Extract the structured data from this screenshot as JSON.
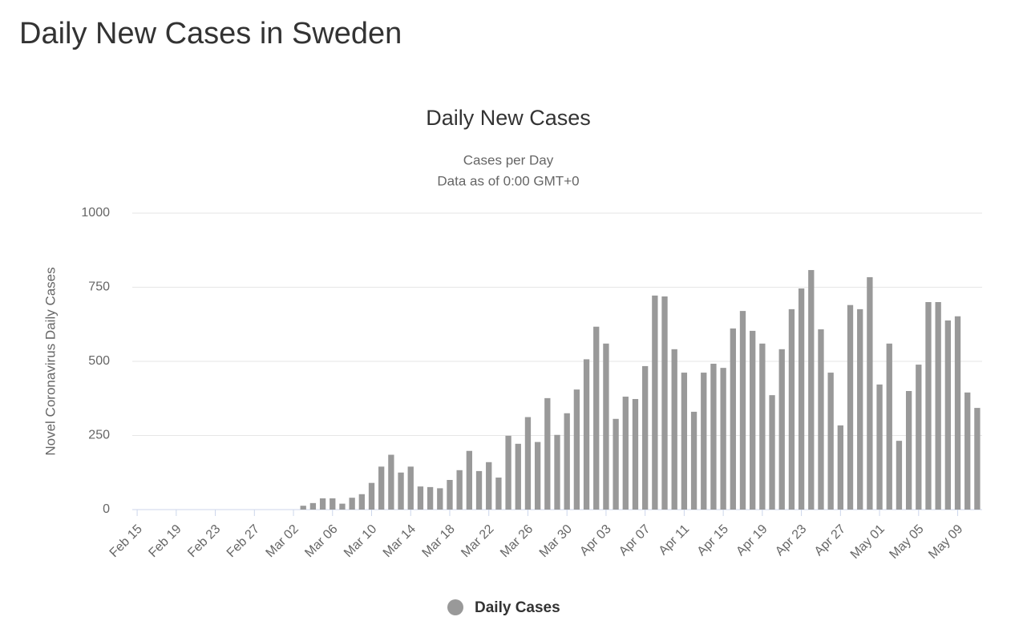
{
  "page_title": "Daily New Cases in Sweden",
  "chart_data": {
    "type": "bar",
    "title": "Daily New Cases",
    "subtitle": [
      "Cases per Day",
      "Data as of 0:00 GMT+0"
    ],
    "y_label": "Novel Coronavirus Daily Cases",
    "categories": [
      "Feb 15",
      null,
      null,
      null,
      "Feb 19",
      null,
      null,
      null,
      "Feb 23",
      null,
      null,
      null,
      "Feb 27",
      null,
      null,
      null,
      "Mar 02",
      null,
      null,
      null,
      "Mar 06",
      null,
      null,
      null,
      "Mar 10",
      null,
      null,
      null,
      "Mar 14",
      null,
      null,
      null,
      "Mar 18",
      null,
      null,
      null,
      "Mar 22",
      null,
      null,
      null,
      "Mar 26",
      null,
      null,
      null,
      "Mar 30",
      null,
      null,
      null,
      "Apr 03",
      null,
      null,
      null,
      "Apr 07",
      null,
      null,
      null,
      "Apr 11",
      null,
      null,
      null,
      "Apr 15",
      null,
      null,
      null,
      "Apr 19",
      null,
      null,
      null,
      "Apr 23",
      null,
      null,
      null,
      "Apr 27",
      null,
      null,
      null,
      "May 01",
      null,
      null,
      null,
      "May 05",
      null,
      null,
      null,
      "May 09",
      null,
      null
    ],
    "series": [
      {
        "name": "Daily Cases",
        "color": "#999999",
        "values": [
          0,
          0,
          0,
          0,
          0,
          0,
          0,
          0,
          0,
          0,
          0,
          0,
          0,
          0,
          0,
          0,
          0,
          13,
          22,
          38,
          38,
          20,
          40,
          52,
          90,
          145,
          185,
          125,
          145,
          78,
          76,
          72,
          100,
          133,
          198,
          130,
          160,
          108,
          249,
          222,
          312,
          228,
          376,
          252,
          325,
          405,
          507,
          617,
          560,
          306,
          381,
          373,
          484,
          722,
          719,
          541,
          462,
          330,
          462,
          492,
          478,
          611,
          670,
          603,
          560,
          386,
          541,
          676,
          746,
          808,
          608,
          462,
          284,
          690,
          676,
          784,
          422,
          560,
          232,
          400,
          489,
          700,
          700,
          638,
          652,
          395,
          343
        ]
      }
    ],
    "ylim": [
      0,
      1000
    ],
    "yticks": [
      0,
      250,
      500,
      750,
      1000
    ],
    "grid": true,
    "legend": "bottom"
  }
}
